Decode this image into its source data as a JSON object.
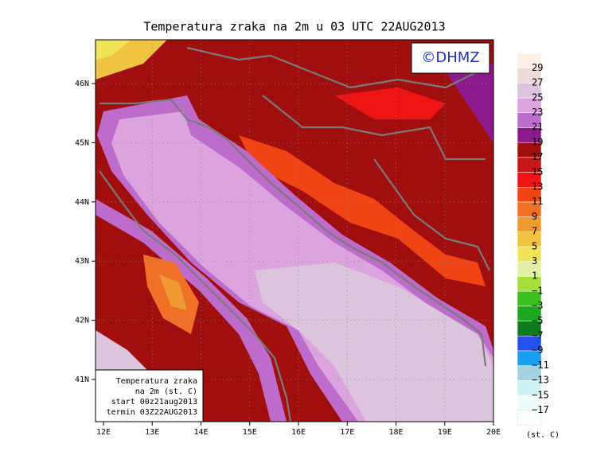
{
  "title": "Temperatura zraka na 2m u 03 UTC 22AUG2013",
  "copyright": "©DHMZ",
  "info_box": {
    "lines": [
      "Temperatura zraka",
      "na 2m (st. C)",
      "start 00z21aug2013",
      "termin 03Z22AUG2013"
    ]
  },
  "lon_labels": [
    "12E",
    "13E",
    "14E",
    "15E",
    "16E",
    "17E",
    "18E",
    "19E",
    "20E"
  ],
  "lat_labels": [
    "46N",
    "45N",
    "44N",
    "43N",
    "42N",
    "41N"
  ],
  "legend": {
    "labels": [
      "29",
      "27",
      "25",
      "23",
      "21",
      "19",
      "17",
      "15",
      "13",
      "11",
      "9",
      "7",
      "5",
      "3",
      "1",
      "−1",
      "−3",
      "−5",
      "−7",
      "−9",
      "−11",
      "−13",
      "−15",
      "−17"
    ],
    "colors": [
      "#fdf0e4",
      "#eedad8",
      "#dcc4dc",
      "#dca4de",
      "#be6ccc",
      "#8c1a8c",
      "#a00e0e",
      "#c81616",
      "#ee1414",
      "#f04414",
      "#f07028",
      "#f09a34",
      "#f0c440",
      "#f0e458",
      "#e2f0a8",
      "#a8de3c",
      "#3cc020",
      "#1ea81e",
      "#107a1e",
      "#2450ee",
      "#18a0ee",
      "#a4d4e2",
      "#cff2f2",
      "#eefcfc"
    ],
    "unit": "(st. C)"
  }
}
